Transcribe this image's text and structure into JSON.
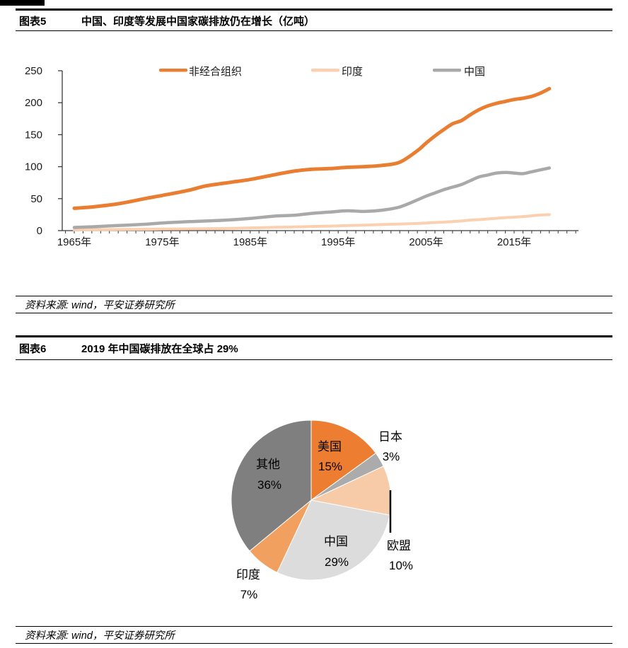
{
  "figure5": {
    "label": "图表5",
    "title": "中国、印度等发展中国家碳排放仍在增长（亿吨）",
    "source": "资料来源: wind，平安证券研究所"
  },
  "figure6": {
    "label": "图表6",
    "title": "2019 年中国碳排放在全球占 29%",
    "source": "资料来源: wind，平安证券研究所"
  },
  "chart_data": [
    {
      "type": "line",
      "title": "中国、印度等发展中国家碳排放仍在增长",
      "unit": "亿吨",
      "ylim": [
        0,
        250
      ],
      "y_ticks": [
        0,
        50,
        100,
        150,
        200,
        250
      ],
      "x_tick_labels": [
        "1965年",
        "1975年",
        "1985年",
        "1995年",
        "2005年",
        "2015年"
      ],
      "x_range": [
        1965,
        2019
      ],
      "legend_position": "top",
      "x": [
        1965,
        1967,
        1970,
        1973,
        1975,
        1978,
        1980,
        1983,
        1985,
        1988,
        1990,
        1992,
        1994,
        1996,
        1998,
        2000,
        2002,
        2004,
        2005,
        2006,
        2007,
        2008,
        2009,
        2010,
        2011,
        2012,
        2013,
        2014,
        2015,
        2016,
        2017,
        2018,
        2019
      ],
      "series": [
        {
          "name": "非经合组织",
          "color": "#E97E31",
          "stroke_width": 5,
          "values": [
            35,
            37,
            42,
            50,
            55,
            63,
            70,
            76,
            80,
            88,
            93,
            96,
            97,
            99,
            100,
            102,
            107,
            125,
            137,
            148,
            158,
            167,
            172,
            181,
            189,
            195,
            199,
            202,
            205,
            207,
            210,
            215,
            222
          ]
        },
        {
          "name": "印度",
          "color": "#FAD0B1",
          "stroke_width": 4,
          "values": [
            1.2,
            1.5,
            1.8,
            2.1,
            2.4,
            2.8,
            3.0,
            3.6,
            4.3,
            5.2,
            5.8,
            6.5,
            7.1,
            7.8,
            8.6,
            9.5,
            10.3,
            11.2,
            12.0,
            12.6,
            13.3,
            14.2,
            15.0,
            16.5,
            17.2,
            18.2,
            19.3,
            20.3,
            21.0,
            22.0,
            23.2,
            24.5,
            25.0
          ]
        },
        {
          "name": "中国",
          "color": "#A9A9A9",
          "stroke_width": 4.5,
          "values": [
            5,
            6,
            8,
            10,
            12,
            14,
            15,
            17,
            19,
            23,
            24,
            27,
            29,
            31,
            30,
            32,
            37,
            48,
            54,
            59,
            64,
            68,
            72,
            78,
            84,
            87,
            90,
            91,
            90,
            89,
            92,
            95,
            98
          ]
        }
      ]
    },
    {
      "type": "pie",
      "title": "2019 年中国碳排放在全球占 29%",
      "start_angle_deg": 0,
      "direction": "clockwise",
      "slices": [
        {
          "name": "美国",
          "value": 15,
          "pct_label": "15%",
          "color": "#ED7D31",
          "label_inside": true
        },
        {
          "name": "日本",
          "value": 3,
          "pct_label": "3%",
          "color": "#ABABAB",
          "label_inside": false
        },
        {
          "name": "欧盟",
          "value": 10,
          "pct_label": "10%",
          "color": "#F7CBA8",
          "label_inside": false,
          "leader_line": true
        },
        {
          "name": "中国",
          "value": 29,
          "pct_label": "29%",
          "color": "#DCDCDC",
          "label_inside": true
        },
        {
          "name": "印度",
          "value": 7,
          "pct_label": "7%",
          "color": "#F2A05F",
          "label_inside": false
        },
        {
          "name": "其他",
          "value": 36,
          "pct_label": "36%",
          "color": "#7F7F7F",
          "label_inside": true
        }
      ]
    }
  ]
}
